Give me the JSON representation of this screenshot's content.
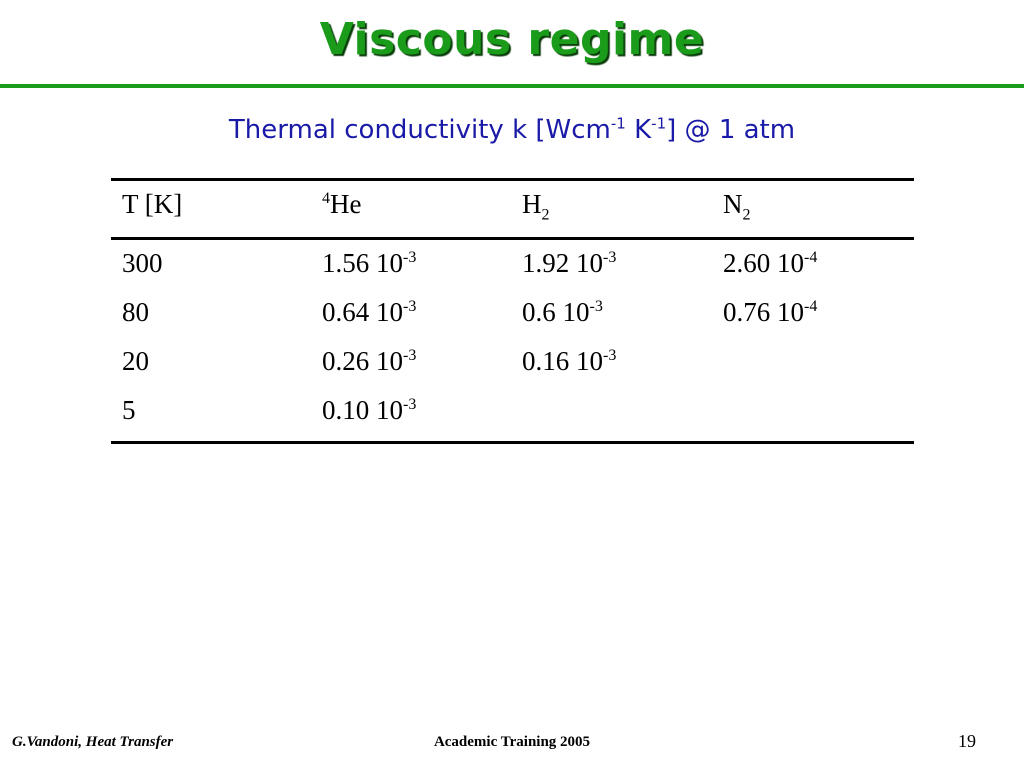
{
  "title": "Viscous regime",
  "subtitle": {
    "text_a": "Thermal conductivity k [Wcm",
    "exp1": "-1",
    "text_b": " K",
    "exp2": "-1",
    "text_c": "]  @ 1 atm"
  },
  "table": {
    "headers": {
      "col1": "T [K]",
      "col2_mass": "4",
      "col2_elem": "He",
      "col3_elem": "H",
      "col3_sub": "2",
      "col4_elem": "N",
      "col4_sub": "2"
    },
    "rows": [
      {
        "t": "300",
        "he_m": "1.56  10",
        "he_e": "-3",
        "h2_m": "1.92  10",
        "h2_e": "-3",
        "n2_m": "2.60   10",
        "n2_e": "-4"
      },
      {
        "t": "80",
        "he_m": "0.64  10",
        "he_e": "-3",
        "h2_m": "0.6  10",
        "h2_e": "-3",
        "n2_m": "0.76   10",
        "n2_e": "-4"
      },
      {
        "t": "20",
        "he_m": "0.26  10",
        "he_e": "-3",
        "h2_m": "0.16  10",
        "h2_e": "-3"
      },
      {
        "t": "5",
        "he_m": "0.10  10",
        "he_e": "-3"
      }
    ]
  },
  "footer": {
    "author": "G.Vandoni, Heat Transfer",
    "event": "Academic Training 2005",
    "page": "19"
  },
  "colors": {
    "title": "#1a9b1a",
    "subtitle": "#1a1aa8"
  }
}
